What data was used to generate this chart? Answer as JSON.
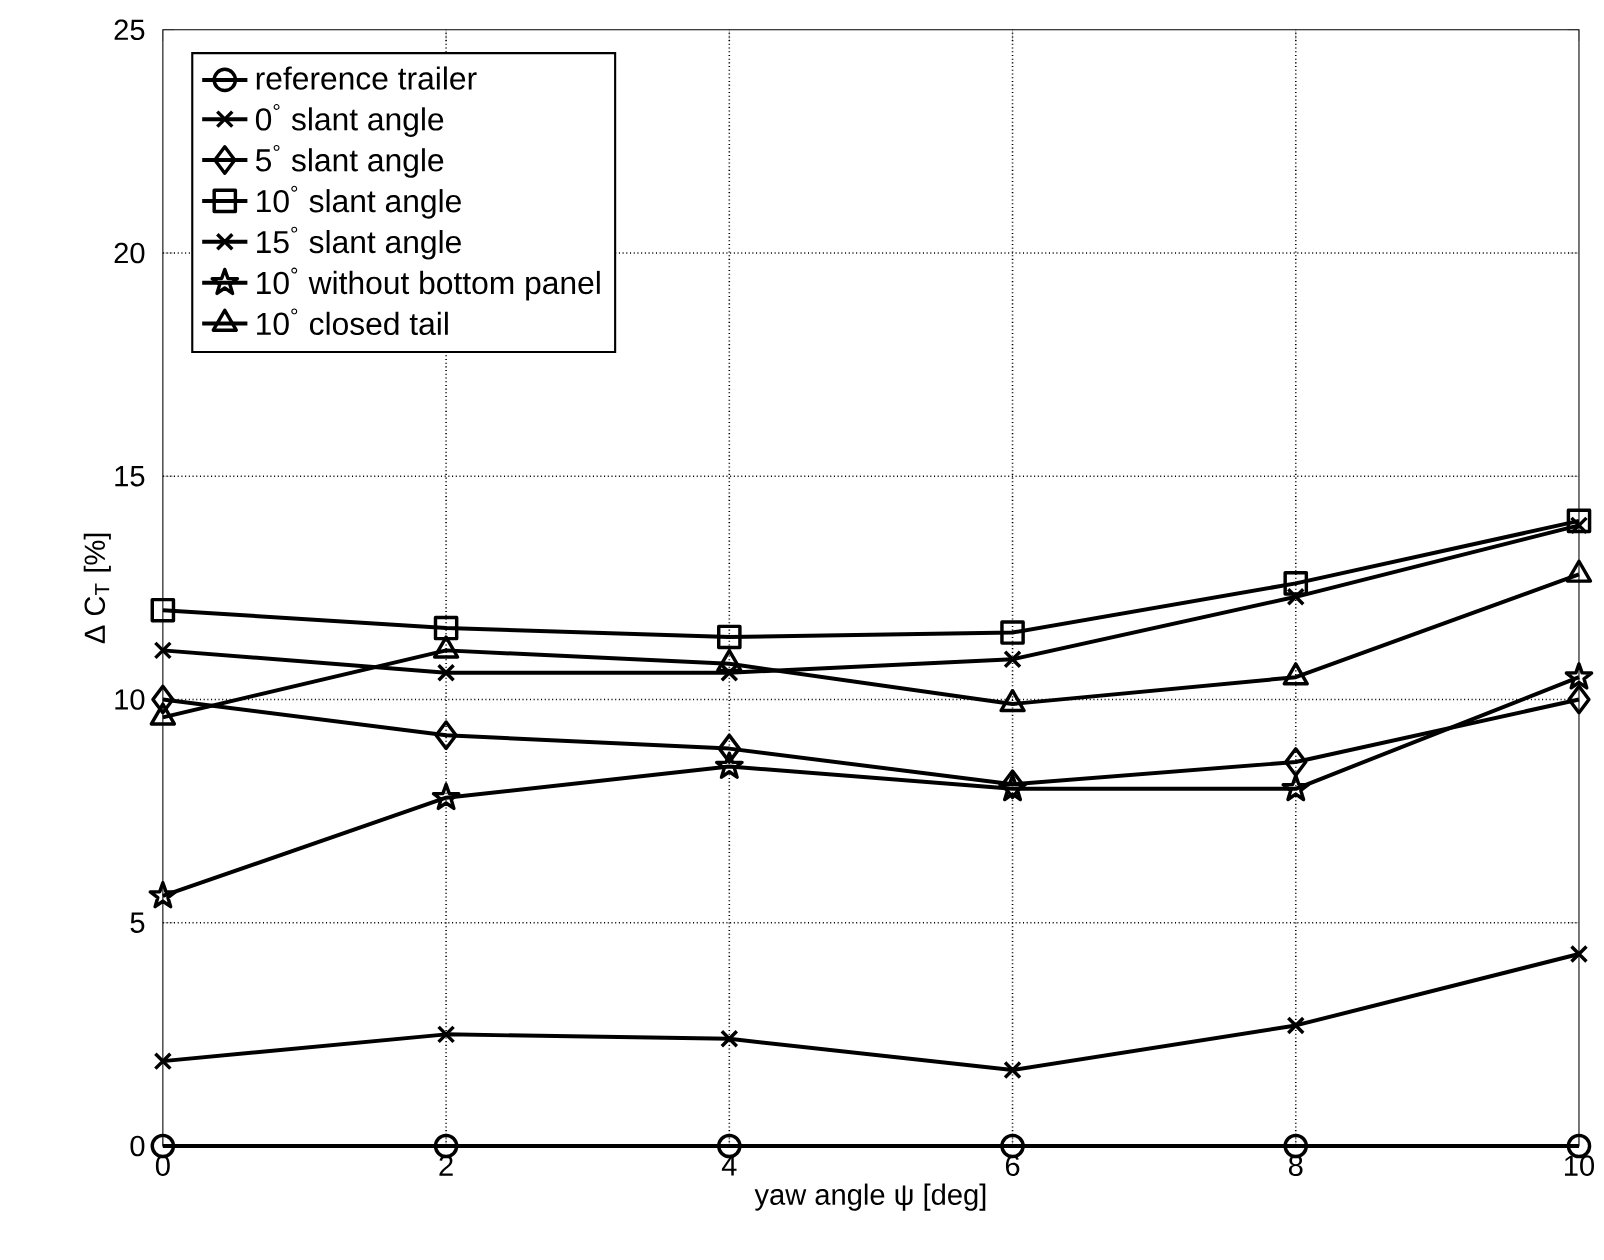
{
  "chart_data": {
    "type": "line",
    "xlabel": "yaw angle ψ [deg]",
    "ylabel": "Δ C$_{T}$ [%]",
    "x": [
      0,
      2,
      4,
      6,
      8,
      10
    ],
    "series": [
      {
        "name": "reference trailer",
        "color": "#000000",
        "marker": "circle",
        "values": [
          0,
          0,
          0,
          0,
          0,
          0
        ]
      },
      {
        "name": "0$^{°}$ slant angle",
        "color": "#000000",
        "marker": "cross",
        "values": [
          1.9,
          2.5,
          2.4,
          1.7,
          2.7,
          4.3
        ]
      },
      {
        "name": "5$^{°}$ slant angle",
        "color": "#000000",
        "marker": "diamond",
        "values": [
          10.0,
          9.2,
          8.9,
          8.1,
          8.6,
          10.0
        ]
      },
      {
        "name": "10$^{°}$ slant angle",
        "color": "#000000",
        "marker": "square",
        "values": [
          12.0,
          11.6,
          11.4,
          11.5,
          12.6,
          14.0
        ]
      },
      {
        "name": "15$^{°}$ slant angle",
        "color": "#000000",
        "marker": "cross",
        "values": [
          11.1,
          10.6,
          10.6,
          10.9,
          12.3,
          13.9
        ]
      },
      {
        "name": "10$^{°}$ without bottom panel",
        "color": "#000000",
        "marker": "star",
        "values": [
          5.6,
          7.8,
          8.5,
          8.0,
          8.0,
          10.5
        ]
      },
      {
        "name": "10$^{°}$ closed tail",
        "color": "#000000",
        "marker": "triangle",
        "values": [
          9.6,
          11.1,
          10.8,
          9.9,
          10.5,
          12.8
        ]
      }
    ],
    "xlim": [
      0,
      10
    ],
    "ylim": [
      0,
      25
    ],
    "xticks": [
      0,
      2,
      4,
      6,
      8,
      10
    ],
    "yticks": [
      0,
      5,
      10,
      15,
      20,
      25
    ],
    "grid": true,
    "legend": "top left",
    "line_style": "solid"
  }
}
